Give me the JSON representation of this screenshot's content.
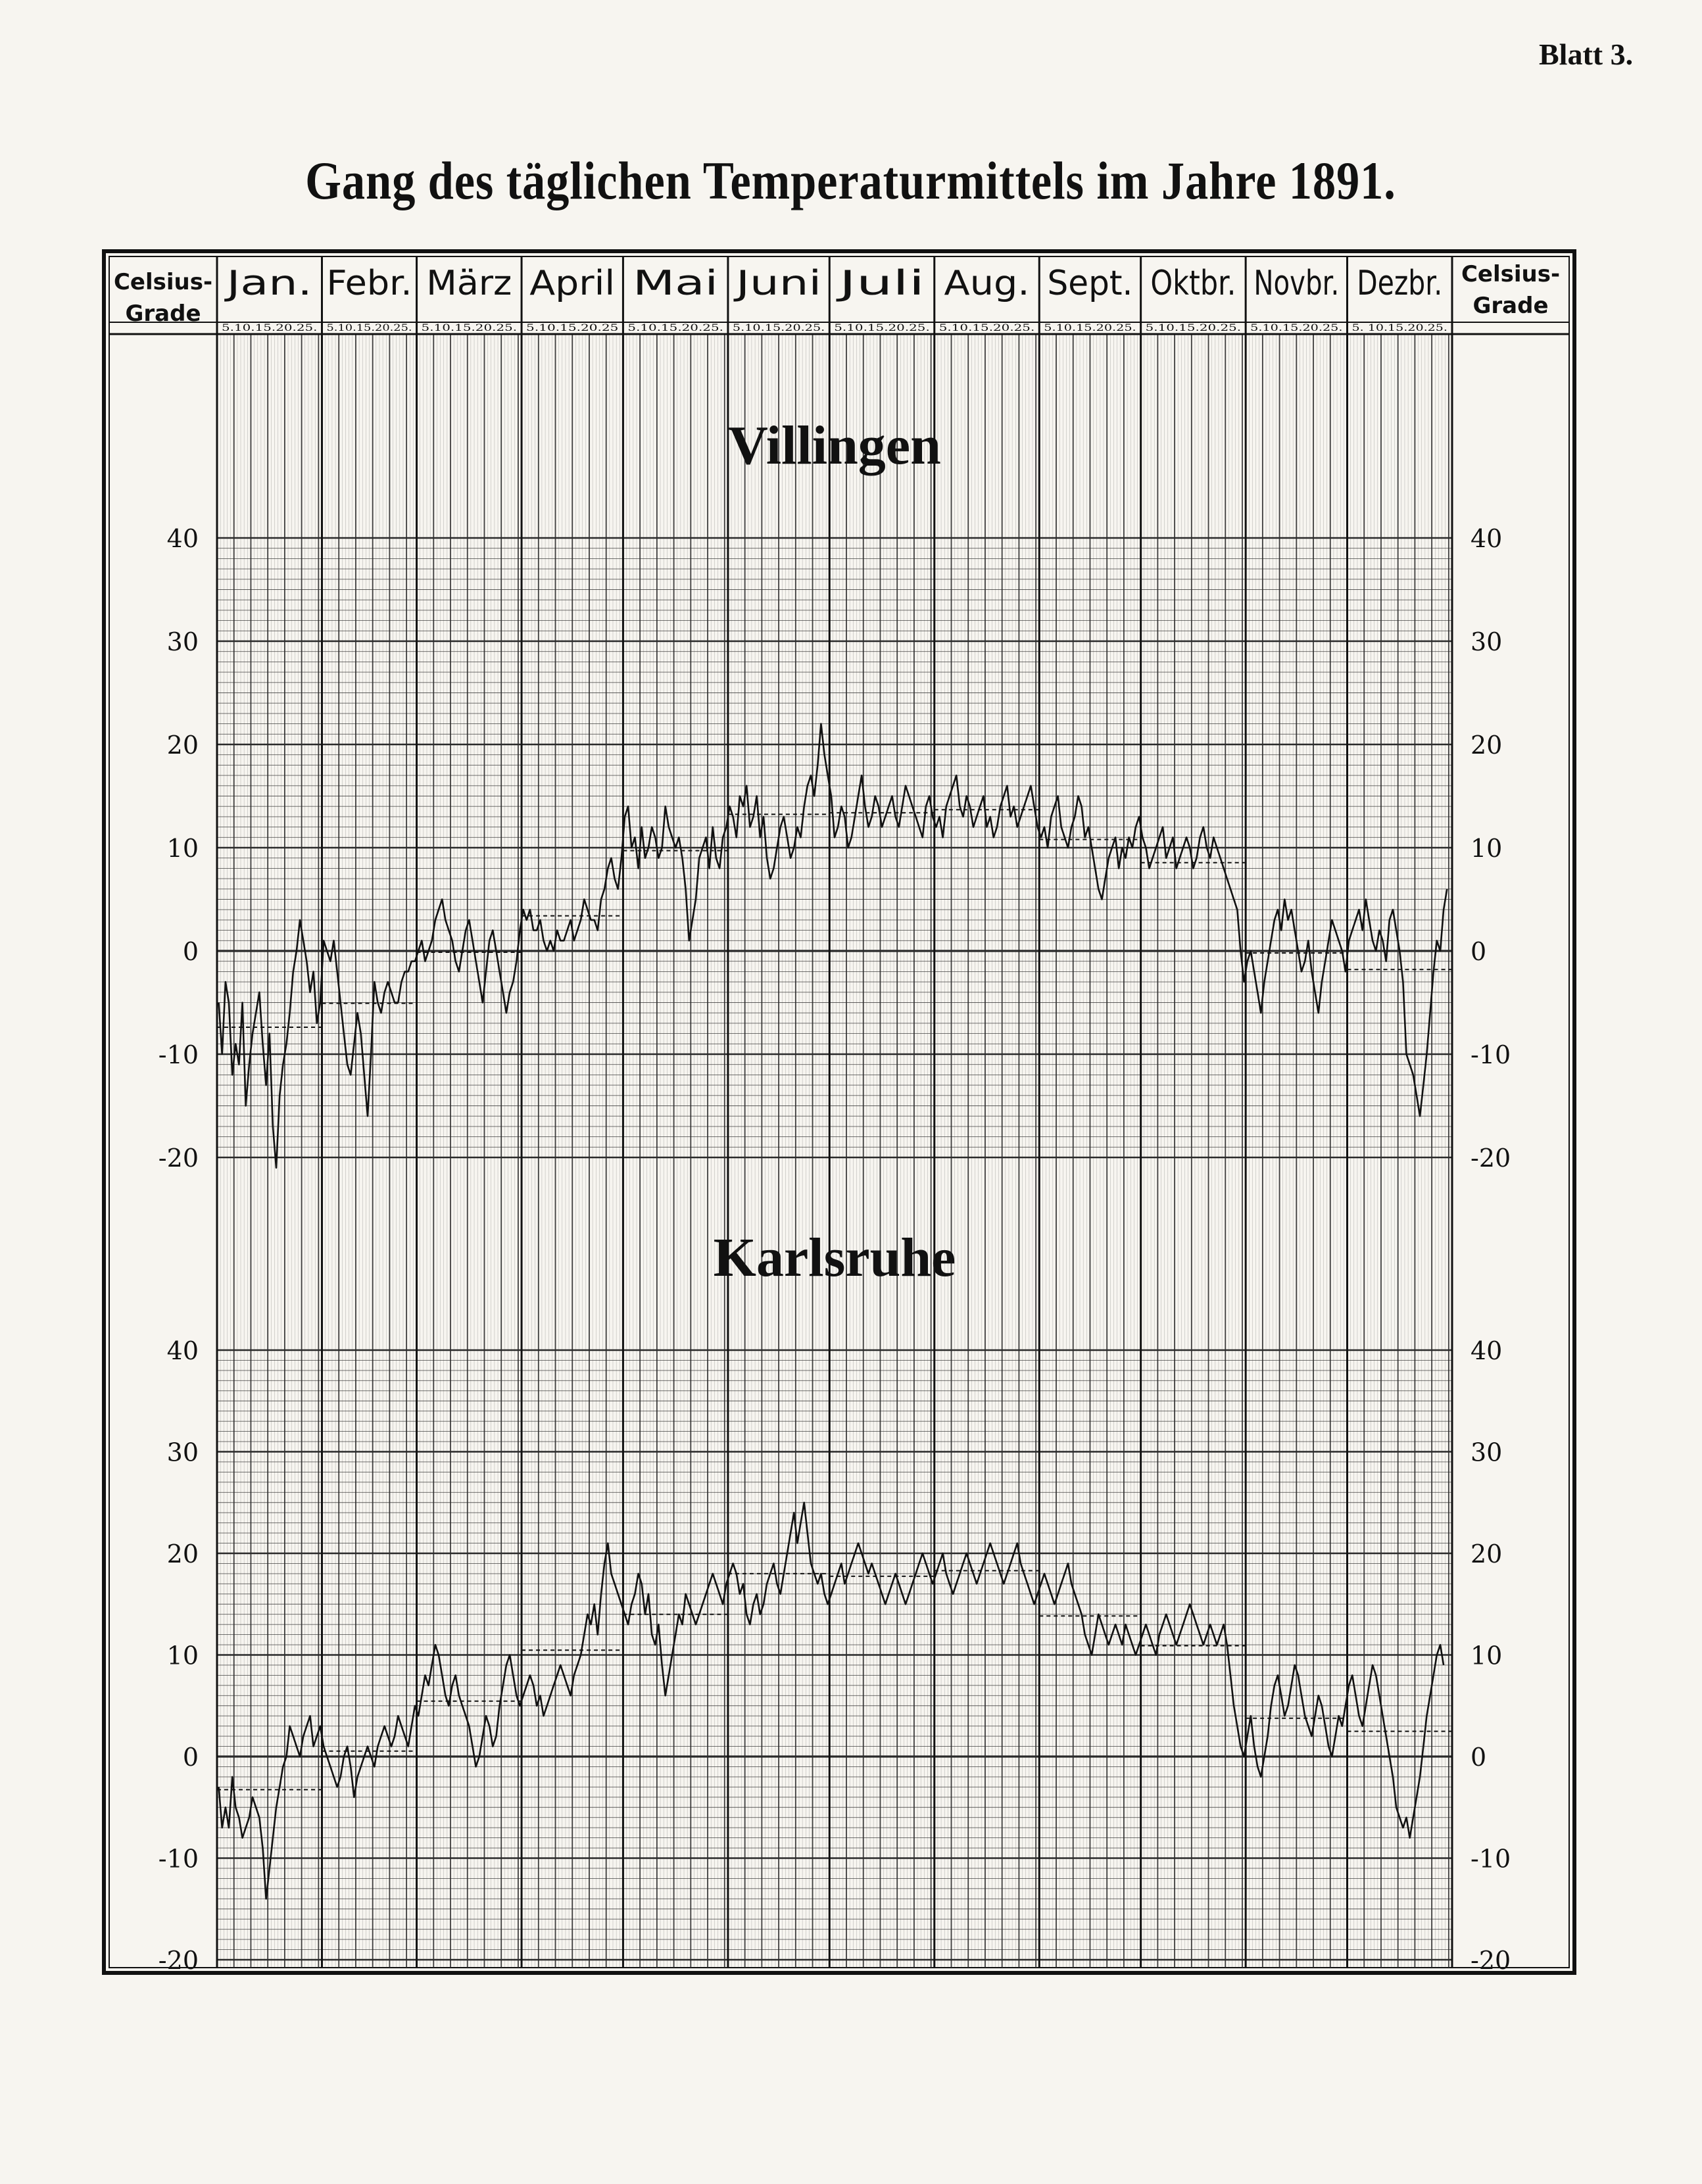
{
  "sheet_label": "Blatt 3.",
  "title": "Gang des täglichen Temperaturmittels im Jahre 1891.",
  "header": {
    "unit_left": [
      "Celsius-",
      "Grade"
    ],
    "unit_right": [
      "Celsius-",
      "Grade"
    ],
    "months": [
      "Jan.",
      "Febr.",
      "März",
      "April",
      "Mai",
      "Juni",
      "Juli",
      "Aug.",
      "Sept.",
      "Oktbr.",
      "Novbr.",
      "Dezbr."
    ],
    "day_ticks": [
      "5.10.15.20.25.",
      "5.10.15.20.25.",
      "5.10.15.20.25.",
      "5.10.15.20.25",
      "5.10.15.20.25.",
      "5.10.15.20.25.",
      "5.10.15.20.25.",
      "5.10.15.20.25.",
      "5.10.15.20.25.",
      "5.10.15.20.25.",
      "5.10.15.20.25.",
      "5. 10.15.20.25."
    ]
  },
  "colors": {
    "ink": "#111111",
    "paper": "#f7f5f0",
    "grid": "#2a2a2a"
  },
  "chart_data": [
    {
      "type": "line",
      "title": "Villingen",
      "ylim": [
        -20,
        40
      ],
      "yticks": [
        "40",
        "30",
        "20",
        "10",
        "0",
        "-10",
        "-20"
      ],
      "yticks_right": [
        "40",
        "30",
        "20",
        "10",
        "0",
        "-10",
        "-20"
      ],
      "x_unit": "day of year 1891",
      "series": [
        {
          "values": [
            -5,
            -10,
            -3,
            -5,
            -12,
            -9,
            -11,
            -5,
            -15,
            -11,
            -8,
            -6,
            -4,
            -9,
            -13,
            -8,
            -17,
            -21,
            -14,
            -11,
            -9,
            -6,
            -2,
            0,
            3,
            1,
            -1,
            -4,
            -2,
            -7,
            -5,
            1,
            0,
            -1,
            1,
            -2,
            -5,
            -8,
            -11,
            -12,
            -9,
            -6,
            -8,
            -12,
            -16,
            -10,
            -3,
            -5,
            -6,
            -4,
            -3,
            -4,
            -5,
            -5,
            -3,
            -2,
            -2,
            -1,
            -1,
            0,
            1,
            -1,
            0,
            1,
            3,
            4,
            5,
            3,
            2,
            1,
            -1,
            -2,
            0,
            2,
            3,
            1,
            -1,
            -3,
            -5,
            -2,
            1,
            2,
            0,
            -2,
            -4,
            -6,
            -4,
            -3,
            -1,
            2,
            4,
            3,
            4,
            2,
            2,
            3,
            1,
            0,
            1,
            0,
            2,
            1,
            1,
            2,
            3,
            1,
            2,
            3,
            5,
            4,
            3,
            3,
            2,
            5,
            6,
            8,
            9,
            7,
            6,
            9,
            13,
            14,
            10,
            11,
            8,
            12,
            9,
            10,
            12,
            11,
            9,
            10,
            14,
            12,
            11,
            10,
            11,
            9,
            6,
            1,
            3,
            5,
            9,
            10,
            11,
            8,
            12,
            9,
            8,
            11,
            12,
            14,
            13,
            11,
            15,
            14,
            16,
            12,
            13,
            15,
            11,
            13,
            9,
            7,
            8,
            10,
            12,
            13,
            11,
            9,
            10,
            12,
            11,
            14,
            16,
            17,
            15,
            18,
            22,
            19,
            17,
            15,
            11,
            12,
            14,
            13,
            10,
            11,
            13,
            15,
            17,
            14,
            12,
            13,
            15,
            14,
            12,
            13,
            14,
            15,
            13,
            12,
            14,
            16,
            15,
            14,
            13,
            12,
            11,
            14,
            15,
            13,
            12,
            13,
            11,
            14,
            15,
            16,
            17,
            14,
            13,
            15,
            14,
            12,
            13,
            14,
            15,
            12,
            13,
            11,
            12,
            14,
            15,
            16,
            13,
            14,
            12,
            13,
            14,
            15,
            16,
            14,
            12,
            11,
            12,
            10,
            13,
            14,
            15,
            12,
            11,
            10,
            12,
            13,
            15,
            14,
            11,
            12,
            10,
            8,
            6,
            5,
            7,
            9,
            10,
            11,
            8,
            10,
            9,
            11,
            10,
            12,
            13,
            11,
            10,
            8,
            9,
            10,
            11,
            12,
            9,
            10,
            11,
            8,
            9,
            10,
            11,
            10,
            8,
            9,
            11,
            12,
            10,
            9,
            11,
            10,
            9,
            8,
            7,
            6,
            5,
            4,
            0,
            -3,
            -1,
            0,
            -2,
            -4,
            -6,
            -3,
            -1,
            1,
            3,
            4,
            2,
            5,
            3,
            4,
            2,
            0,
            -2,
            -1,
            1,
            -2,
            -4,
            -6,
            -3,
            -1,
            1,
            3,
            2,
            1,
            0,
            -2,
            1,
            2,
            3,
            4,
            2,
            5,
            3,
            1,
            0,
            2,
            1,
            -1,
            3,
            4,
            2,
            0,
            -3,
            -10,
            -11,
            -12,
            -14,
            -16,
            -13,
            -10,
            -6,
            -2,
            1,
            0,
            4,
            6
          ]
        }
      ]
    },
    {
      "type": "line",
      "title": "Karlsruhe",
      "ylim": [
        -20,
        40
      ],
      "yticks": [
        "40",
        "30",
        "20",
        "10",
        "0",
        "-10",
        "-20"
      ],
      "yticks_right": [
        "40",
        "30",
        "20",
        "10",
        "0",
        "-10",
        "-20"
      ],
      "x_unit": "day of year 1891",
      "series": [
        {
          "values": [
            -3,
            -7,
            -5,
            -7,
            -2,
            -5,
            -6,
            -8,
            -7,
            -6,
            -4,
            -5,
            -6,
            -9,
            -14,
            -11,
            -8,
            -5,
            -3,
            -1,
            0,
            3,
            2,
            1,
            0,
            2,
            3,
            4,
            1,
            2,
            3,
            1,
            0,
            -1,
            -2,
            -3,
            -2,
            0,
            1,
            -1,
            -4,
            -2,
            -1,
            0,
            1,
            0,
            -1,
            1,
            2,
            3,
            2,
            1,
            2,
            4,
            3,
            2,
            1,
            3,
            5,
            4,
            6,
            8,
            7,
            9,
            11,
            10,
            8,
            6,
            5,
            7,
            8,
            6,
            5,
            4,
            3,
            1,
            -1,
            0,
            2,
            4,
            3,
            1,
            2,
            5,
            7,
            9,
            10,
            8,
            6,
            5,
            6,
            7,
            8,
            7,
            5,
            6,
            4,
            5,
            6,
            7,
            8,
            9,
            8,
            7,
            6,
            8,
            9,
            10,
            12,
            14,
            13,
            15,
            12,
            16,
            19,
            21,
            18,
            17,
            16,
            15,
            14,
            13,
            15,
            16,
            18,
            17,
            14,
            16,
            12,
            11,
            13,
            9,
            6,
            8,
            10,
            12,
            14,
            13,
            16,
            15,
            14,
            13,
            14,
            15,
            16,
            17,
            18,
            17,
            16,
            15,
            17,
            18,
            19,
            18,
            16,
            17,
            14,
            13,
            15,
            16,
            14,
            15,
            17,
            18,
            19,
            17,
            16,
            18,
            20,
            22,
            24,
            21,
            23,
            25,
            22,
            19,
            18,
            17,
            18,
            16,
            15,
            16,
            17,
            18,
            19,
            17,
            18,
            19,
            20,
            21,
            20,
            19,
            18,
            19,
            18,
            17,
            16,
            15,
            16,
            17,
            18,
            17,
            16,
            15,
            16,
            17,
            18,
            19,
            20,
            19,
            18,
            17,
            18,
            19,
            20,
            18,
            17,
            16,
            17,
            18,
            19,
            20,
            19,
            18,
            17,
            18,
            19,
            20,
            21,
            20,
            19,
            18,
            17,
            18,
            19,
            20,
            21,
            19,
            18,
            17,
            16,
            15,
            16,
            17,
            18,
            17,
            16,
            15,
            16,
            17,
            18,
            19,
            17,
            16,
            15,
            14,
            12,
            11,
            10,
            12,
            14,
            13,
            12,
            11,
            12,
            13,
            12,
            11,
            13,
            12,
            11,
            10,
            11,
            12,
            13,
            12,
            11,
            10,
            12,
            13,
            14,
            13,
            12,
            11,
            12,
            13,
            14,
            15,
            14,
            13,
            12,
            11,
            12,
            13,
            12,
            11,
            12,
            13,
            11,
            8,
            5,
            3,
            1,
            0,
            2,
            4,
            1,
            -1,
            -2,
            0,
            2,
            5,
            7,
            8,
            6,
            4,
            5,
            7,
            9,
            8,
            6,
            4,
            3,
            2,
            4,
            6,
            5,
            3,
            1,
            0,
            2,
            4,
            3,
            5,
            7,
            8,
            6,
            4,
            3,
            5,
            7,
            9,
            8,
            6,
            4,
            2,
            0,
            -2,
            -5,
            -6,
            -7,
            -6,
            -8,
            -6,
            -4,
            -2,
            1,
            4,
            6,
            8,
            10,
            11,
            9
          ]
        }
      ]
    }
  ]
}
